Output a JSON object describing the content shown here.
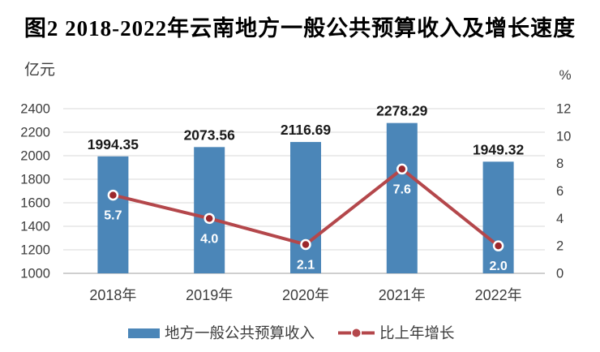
{
  "chart_data": {
    "type": "bar+line",
    "title": "图2 2018-2022年云南地方一般公共预算收入及增长速度",
    "categories": [
      "2018年",
      "2019年",
      "2020年",
      "2021年",
      "2022年"
    ],
    "series": [
      {
        "name": "地方一般公共预算收入",
        "type": "bar",
        "axis": "left",
        "values": [
          1994.35,
          2073.56,
          2116.69,
          2278.29,
          1949.32
        ],
        "labels": [
          "1994.35",
          "2073.56",
          "2116.69",
          "2278.29",
          "1949.32"
        ]
      },
      {
        "name": "比上年增长",
        "type": "line",
        "axis": "right",
        "values": [
          5.7,
          4.0,
          2.1,
          7.6,
          2.0
        ],
        "labels": [
          "5.7",
          "4.0",
          "2.1",
          "7.6",
          "2.0"
        ]
      }
    ],
    "left_axis": {
      "label": "亿元",
      "min": 1000,
      "max": 2400,
      "step": 200,
      "ticks": [
        "2400",
        "2200",
        "2000",
        "1800",
        "1600",
        "1400",
        "1200",
        "1000"
      ]
    },
    "right_axis": {
      "label": "%",
      "min": 0,
      "max": 12,
      "step": 2,
      "ticks": [
        "12",
        "10",
        "8",
        "6",
        "4",
        "2",
        "0"
      ]
    },
    "grid": true,
    "legend_position": "bottom"
  },
  "colors": {
    "bar": "#4b86b8",
    "line": "#b4474b",
    "marker_fill": "#9c282c",
    "marker_ring": "#ffffff",
    "grid": "#d9d9d9",
    "axis_line": "#bfbfbf",
    "tick_text": "#3d3d3d",
    "bar_label": "#1a1a1a",
    "point_label": "#ffffff",
    "title": "#000000",
    "background": "#ffffff"
  }
}
